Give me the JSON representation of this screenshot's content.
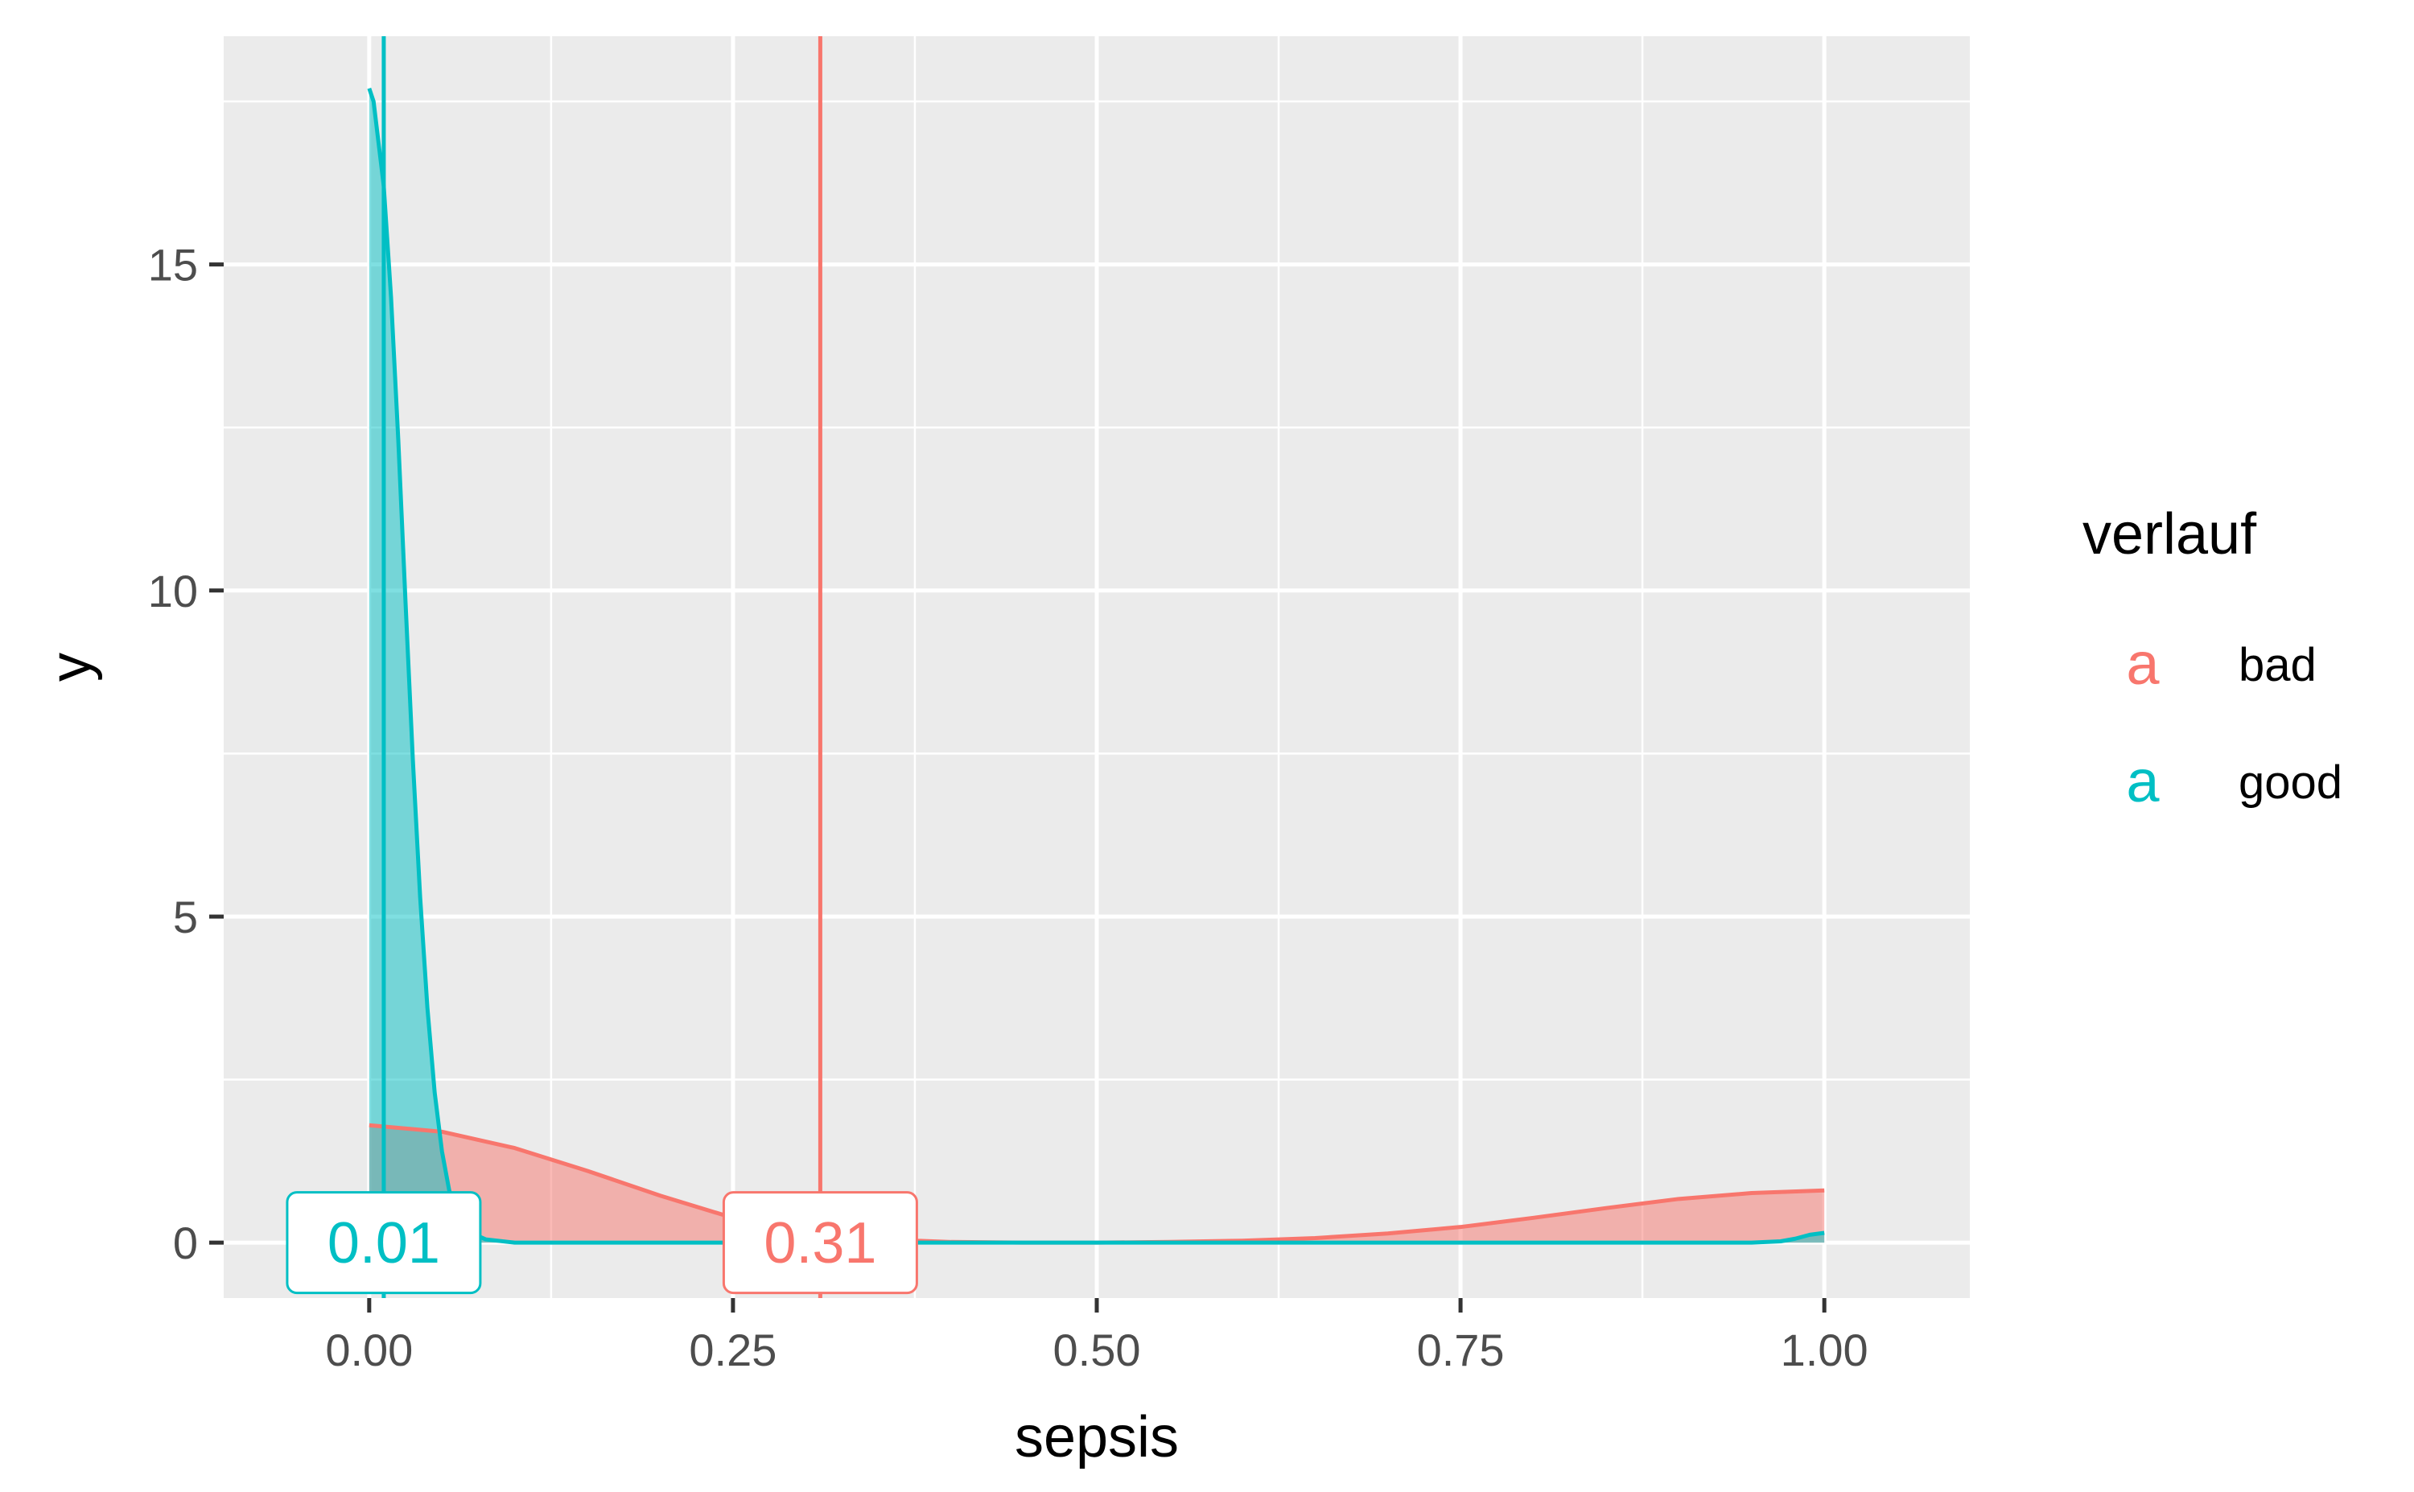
{
  "chart_data": {
    "type": "area",
    "title": "",
    "xlabel": "sepsis",
    "ylabel": "y",
    "xlim": [
      -0.1,
      1.1
    ],
    "ylim": [
      -0.85,
      18.5
    ],
    "x_ticks": [
      0,
      0.25,
      0.5,
      0.75,
      1.0
    ],
    "x_tick_labels": [
      "0.00",
      "0.25",
      "0.50",
      "0.75",
      "1.00"
    ],
    "y_ticks": [
      0,
      5,
      10,
      15
    ],
    "y_tick_labels": [
      "0",
      "5",
      "10",
      "15"
    ],
    "grid": true,
    "legend": {
      "title": "verlauf",
      "position": "right",
      "key_glyph": "a",
      "entries": [
        "bad",
        "good"
      ]
    },
    "series": [
      {
        "name": "bad",
        "color": "#F8766D",
        "x": [
          0,
          0.05,
          0.1,
          0.15,
          0.2,
          0.25,
          0.3,
          0.35,
          0.4,
          0.45,
          0.5,
          0.55,
          0.6,
          0.65,
          0.7,
          0.75,
          0.8,
          0.85,
          0.9,
          0.95,
          1.0
        ],
        "y": [
          1.8,
          1.7,
          1.45,
          1.1,
          0.72,
          0.38,
          0.15,
          0.05,
          0.01,
          0.0,
          0.0,
          0.01,
          0.03,
          0.07,
          0.14,
          0.24,
          0.38,
          0.53,
          0.67,
          0.76,
          0.8
        ],
        "reference_line": 0.31,
        "reference_label": "0.31"
      },
      {
        "name": "good",
        "color": "#00BFC4",
        "x": [
          0,
          0.003,
          0.01,
          0.015,
          0.02,
          0.025,
          0.03,
          0.035,
          0.04,
          0.045,
          0.05,
          0.055,
          0.06,
          0.07,
          0.08,
          0.1,
          0.2,
          0.4,
          0.6,
          0.8,
          0.9,
          0.95,
          0.97,
          0.98,
          0.99,
          1.0
        ],
        "y": [
          17.7,
          17.5,
          16.2,
          14.5,
          12.3,
          9.8,
          7.4,
          5.3,
          3.6,
          2.3,
          1.4,
          0.8,
          0.45,
          0.15,
          0.05,
          0.0,
          0.0,
          0.0,
          0.0,
          0.0,
          0.0,
          0.0,
          0.02,
          0.06,
          0.12,
          0.15
        ],
        "reference_line": 0.01,
        "reference_label": "0.01"
      }
    ]
  }
}
